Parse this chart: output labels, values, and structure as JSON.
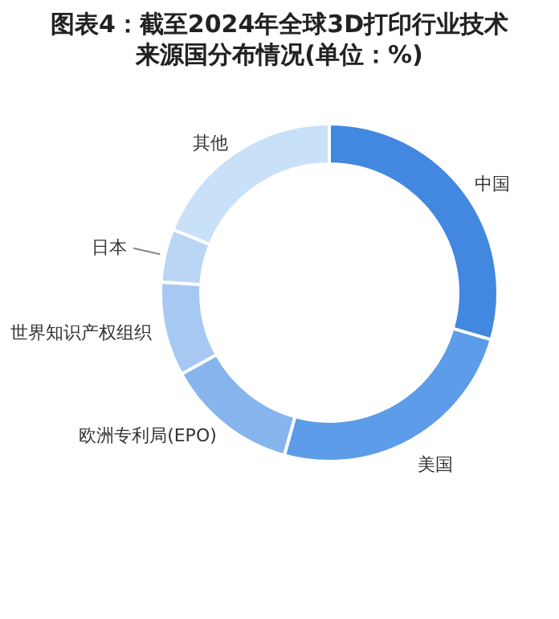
{
  "chart_data": {
    "type": "donut",
    "title": "图表4：截至2024年全球3D打印行业技术来源国分布情况(单位：%)",
    "categories": [
      "中国",
      "美国",
      "欧洲专利局(EPO)",
      "世界知识产权组织",
      "日本",
      "其他"
    ],
    "values": [
      29.5,
      24.8,
      12.7,
      9.0,
      5.1,
      18.9
    ],
    "colors": [
      "#4287e0",
      "#5c9ce8",
      "#86b5ee",
      "#a6c8f2",
      "#bad5f5",
      "#c9e0f9"
    ]
  }
}
